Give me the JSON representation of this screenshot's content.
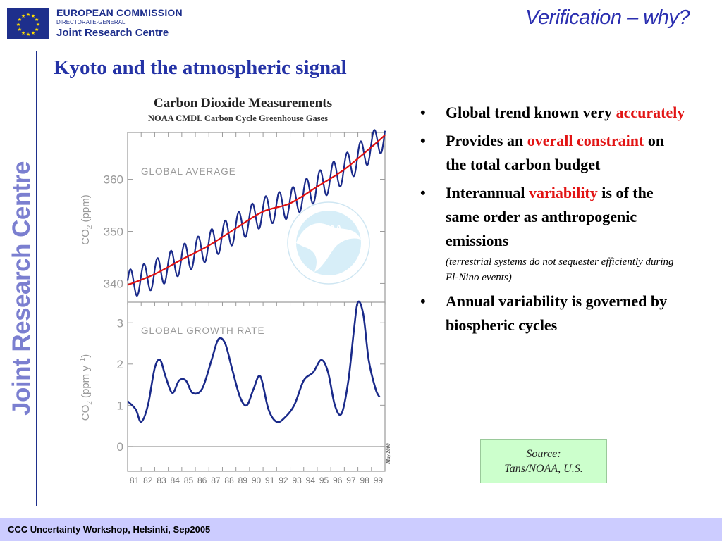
{
  "header": {
    "org_line1": "EUROPEAN COMMISSION",
    "org_line2": "DIRECTORATE-GENERAL",
    "org_line3": "Joint Research Centre",
    "section_title": "Verification – why?",
    "vertical_brand": "Joint Research Centre"
  },
  "slide": {
    "title": "Kyoto and the atmospheric signal"
  },
  "bullets": [
    {
      "pre": "Global trend known very ",
      "hl": "accurately",
      "post": "",
      "note": ""
    },
    {
      "pre": "Provides an ",
      "hl": "overall constraint",
      "post": " on the total carbon budget",
      "note": ""
    },
    {
      "pre": "Interannual ",
      "hl": "variability",
      "post": " is of the same order as anthropogenic emissions",
      "note": "(terrestrial systems do not sequester efficiently during El-Nino events)"
    },
    {
      "pre": "Annual variability is governed by biospheric cycles",
      "hl": "",
      "post": "",
      "note": ""
    }
  ],
  "source": {
    "line1": "Source:",
    "line2": "Tans/NOAA, U.S."
  },
  "footer": {
    "text": "CCC Uncertainty Workshop, Helsinki, Sep2005"
  },
  "colors": {
    "title_blue": "#2432a6",
    "highlight_red": "#e21414",
    "trend_red": "#e01010",
    "series_navy": "#1a2a8a",
    "footer_bg": "#ccccff",
    "source_bg": "#ccffcc"
  },
  "chart_data": [
    {
      "type": "line",
      "title": "Carbon Dioxide Measurements",
      "subtitle": "NOAA CMDL Carbon Cycle Greenhouse Gases",
      "panel_label": "GLOBAL AVERAGE",
      "ylabel": "CO2 (ppm)",
      "ylim": [
        336,
        369
      ],
      "yticks": [
        340,
        350,
        360
      ],
      "xlim": [
        1981,
        2000
      ],
      "trend": {
        "name": "trend",
        "x": [
          1981,
          1983,
          1985,
          1987,
          1989,
          1991,
          1993,
          1995,
          1997,
          1999,
          2000
        ],
        "y": [
          339.7,
          341.8,
          344.6,
          347.3,
          350.6,
          353.8,
          355.4,
          358.6,
          361.9,
          366.2,
          368.5
        ]
      },
      "seasonal_amplitude_ppm": 2.8
    },
    {
      "type": "line",
      "panel_label": "GLOBAL GROWTH RATE",
      "ylabel": "CO2 (ppm y-1)",
      "ylim": [
        -0.6,
        3.5
      ],
      "yticks": [
        0,
        1,
        2,
        3
      ],
      "xlim": [
        1981,
        2000
      ],
      "xtick_labels": [
        "81",
        "82",
        "83",
        "84",
        "85",
        "86",
        "87",
        "88",
        "89",
        "90",
        "91",
        "92",
        "93",
        "94",
        "95",
        "96",
        "97",
        "98",
        "99"
      ],
      "series": [
        {
          "name": "growth rate",
          "x": [
            1981.0,
            1981.6,
            1982.0,
            1982.5,
            1983.0,
            1983.4,
            1983.8,
            1984.3,
            1984.8,
            1985.3,
            1985.8,
            1986.5,
            1987.2,
            1987.7,
            1988.2,
            1988.7,
            1989.3,
            1989.8,
            1990.3,
            1990.8,
            1991.4,
            1992.0,
            1992.6,
            1993.3,
            1994.0,
            1994.7,
            1995.3,
            1995.8,
            1996.3,
            1996.8,
            1997.3,
            1997.7,
            1998.0,
            1998.4,
            1998.8,
            1999.3,
            1999.6
          ],
          "y": [
            1.1,
            0.9,
            0.6,
            1.0,
            1.9,
            2.1,
            1.7,
            1.3,
            1.6,
            1.6,
            1.3,
            1.4,
            2.1,
            2.6,
            2.5,
            1.9,
            1.2,
            1.0,
            1.4,
            1.7,
            0.9,
            0.6,
            0.7,
            1.0,
            1.6,
            1.8,
            2.1,
            1.8,
            1.0,
            0.8,
            1.6,
            2.8,
            3.5,
            3.2,
            2.1,
            1.4,
            1.2
          ]
        }
      ]
    }
  ]
}
